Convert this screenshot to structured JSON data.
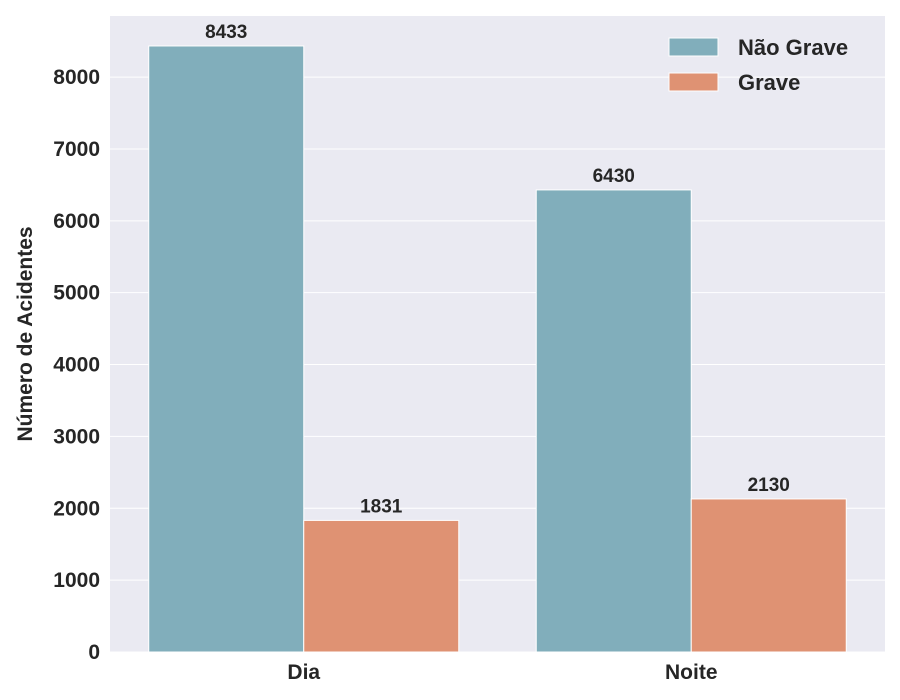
{
  "chart_data": {
    "type": "bar",
    "categories": [
      "Dia",
      "Noite"
    ],
    "series": [
      {
        "name": "Não Grave",
        "values": [
          8433,
          6430
        ],
        "color": "#81aebb"
      },
      {
        "name": "Grave",
        "values": [
          1831,
          2130
        ],
        "color": "#df9273"
      }
    ],
    "xlabel": "",
    "ylabel": "Número de Acidentes",
    "ylim": [
      0,
      8850
    ],
    "yticks": [
      0,
      1000,
      2000,
      3000,
      4000,
      5000,
      6000,
      7000,
      8000
    ],
    "grid": true,
    "legend_position": "top-right",
    "background_color": "#eaeaf2",
    "grid_color": "#ffffff"
  }
}
